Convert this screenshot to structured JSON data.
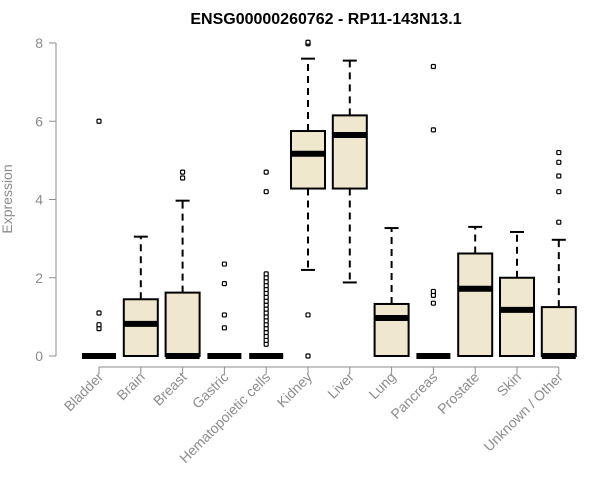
{
  "chart_data": {
    "type": "boxplot",
    "title": "ENSG00000260762 - RP11-143N13.1",
    "xlabel": "",
    "ylabel": "Expression",
    "ylim": [
      0,
      8
    ],
    "yticks": [
      0,
      2,
      4,
      6,
      8
    ],
    "box_color": "#efe8cf",
    "categories": [
      "Bladder",
      "Brain",
      "Breast",
      "Gastric",
      "Hematopoietic cells",
      "Kidney",
      "Liver",
      "Lung",
      "Pancreas",
      "Prostate",
      "Skin",
      "Unknown / Other"
    ],
    "boxes": [
      {
        "q1": 0,
        "median": 0,
        "q3": 0,
        "whisker_low": 0,
        "whisker_high": 0,
        "outliers": [
          0.7,
          0.8,
          1.1,
          6.0
        ]
      },
      {
        "q1": 0,
        "median": 0.82,
        "q3": 1.45,
        "whisker_low": 0,
        "whisker_high": 3.05,
        "outliers": []
      },
      {
        "q1": 0,
        "median": 0,
        "q3": 1.62,
        "whisker_low": 0,
        "whisker_high": 3.97,
        "outliers": [
          4.55,
          4.7
        ]
      },
      {
        "q1": 0,
        "median": 0,
        "q3": 0,
        "whisker_low": 0,
        "whisker_high": 0,
        "outliers": [
          0.72,
          1.05,
          1.85,
          2.35
        ]
      },
      {
        "q1": 0,
        "median": 0,
        "q3": 0,
        "whisker_low": 0,
        "whisker_high": 0,
        "outliers": [
          0.3,
          0.4,
          0.5,
          0.6,
          0.7,
          0.8,
          0.9,
          1.0,
          1.1,
          1.2,
          1.3,
          1.4,
          1.5,
          1.6,
          1.7,
          1.8,
          1.9,
          2.0,
          2.1,
          4.2,
          4.7
        ]
      },
      {
        "q1": 4.28,
        "median": 5.17,
        "q3": 5.75,
        "whisker_low": 2.2,
        "whisker_high": 7.6,
        "outliers": [
          0.0,
          1.05,
          7.98,
          8.02
        ]
      },
      {
        "q1": 4.28,
        "median": 5.65,
        "q3": 6.15,
        "whisker_low": 1.88,
        "whisker_high": 7.55,
        "outliers": []
      },
      {
        "q1": 0,
        "median": 0.97,
        "q3": 1.33,
        "whisker_low": 0,
        "whisker_high": 3.27,
        "outliers": []
      },
      {
        "q1": 0,
        "median": 0,
        "q3": 0,
        "whisker_low": 0,
        "whisker_high": 0,
        "outliers": [
          1.35,
          1.55,
          1.65,
          5.78,
          7.4
        ]
      },
      {
        "q1": 0,
        "median": 1.72,
        "q3": 2.62,
        "whisker_low": 0,
        "whisker_high": 3.3,
        "outliers": []
      },
      {
        "q1": 0,
        "median": 1.18,
        "q3": 2.0,
        "whisker_low": 0,
        "whisker_high": 3.17,
        "outliers": []
      },
      {
        "q1": 0,
        "median": 0,
        "q3": 1.25,
        "whisker_low": 0,
        "whisker_high": 2.97,
        "outliers": [
          3.42,
          4.2,
          4.6,
          4.95,
          5.2
        ]
      }
    ]
  }
}
